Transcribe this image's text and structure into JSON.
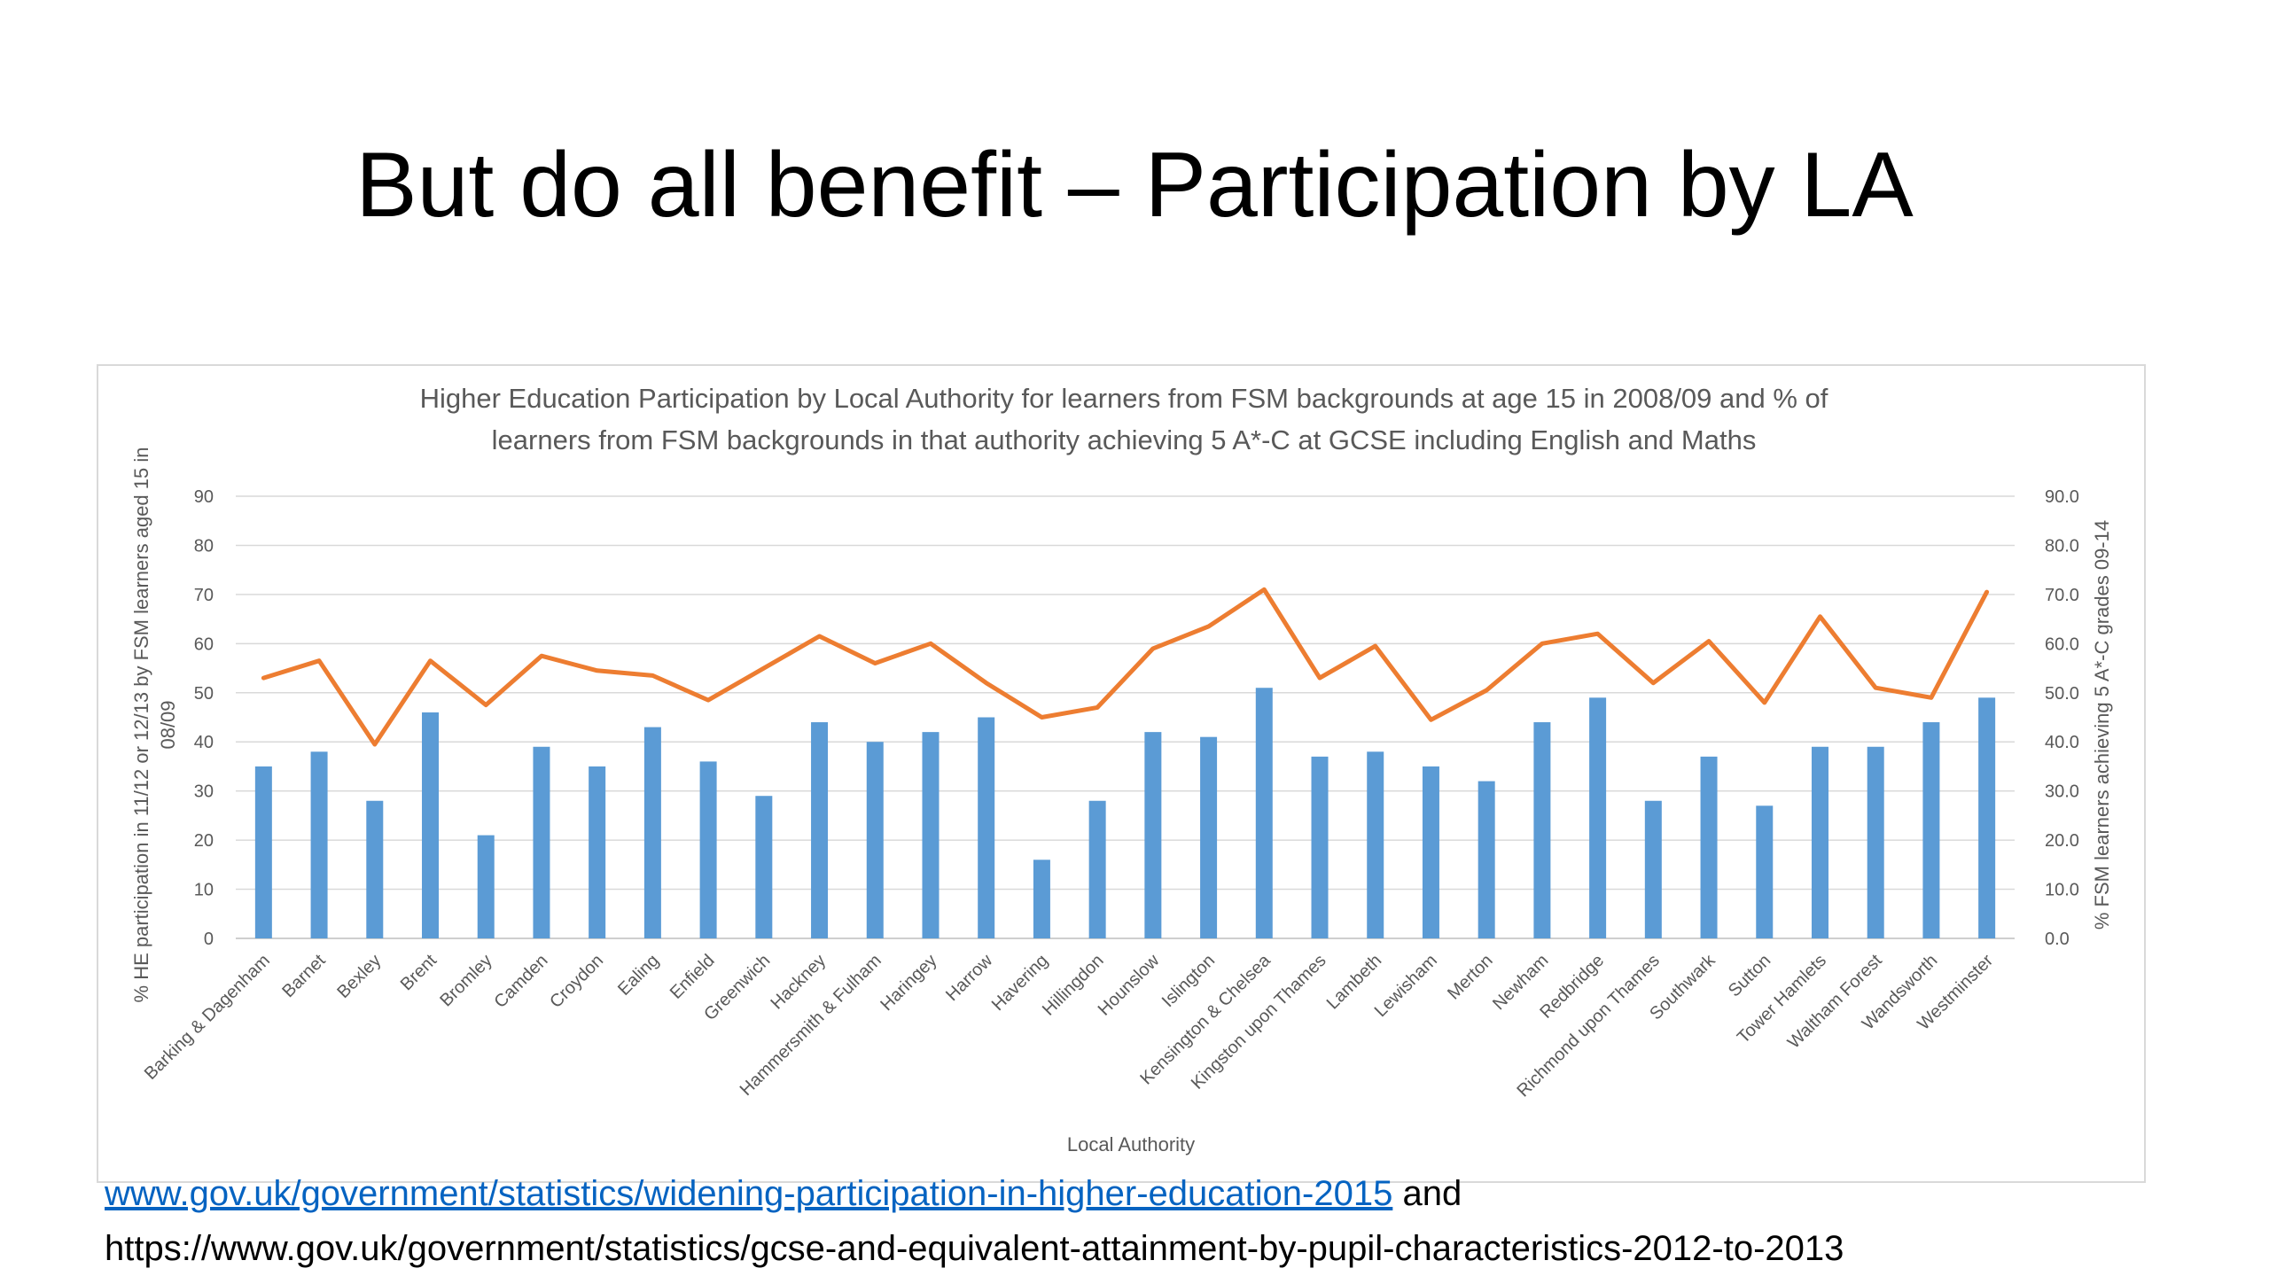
{
  "slide": {
    "title": "But do all benefit – Participation by LA"
  },
  "source": {
    "link_text": "www.gov.uk/government/statistics/widening-participation-in-higher-education-2015",
    "conjunction": " and",
    "second_url_text": "https://www.gov.uk/government/statistics/gcse-and-equivalent-attainment-by-pupil-characteristics-2012-to-2013"
  },
  "chart_data": {
    "type": "bar",
    "title_lines": [
      "Higher Education Participation by Local Authority for learners from FSM backgrounds at age 15 in 2008/09 and % of",
      "learners from FSM backgrounds in that authority achieving 5 A*-C at GCSE including English and Maths"
    ],
    "xlabel": "Local Authority",
    "ylabel_lines": [
      "% HE  participation in 11/12 or 12/13 by FSM learners aged 15 in",
      "08/09"
    ],
    "y2label": "% FSM learners achieving 5 A*-C grades  09-14",
    "ylim": [
      0,
      90
    ],
    "y2lim": [
      0,
      90
    ],
    "yticks": [
      "0",
      "10",
      "20",
      "30",
      "40",
      "50",
      "60",
      "70",
      "80",
      "90"
    ],
    "y2ticks": [
      "0.0",
      "10.0",
      "20.0",
      "30.0",
      "40.0",
      "50.0",
      "60.0",
      "70.0",
      "80.0",
      "90.0"
    ],
    "grid": true,
    "categories": [
      "Barking & Dagenham",
      "Barnet",
      "Bexley",
      "Brent",
      "Bromley",
      "Camden",
      "Croydon",
      "Ealing",
      "Enfield",
      "Greenwich",
      "Hackney",
      "Hammersmith & Fulham",
      "Haringey",
      "Harrow",
      "Havering",
      "Hillingdon",
      "Hounslow",
      "Islington",
      "Kensington & Chelsea",
      "Kingston upon Thames",
      "Lambeth",
      "Lewisham",
      "Merton",
      "Newham",
      "Redbridge",
      "Richmond upon Thames",
      "Southwark",
      "Sutton",
      "Tower Hamlets",
      "Waltham Forest",
      "Wandsworth",
      "Westminster"
    ],
    "series": [
      {
        "kind": "bar",
        "axis": "left",
        "color": "#5b9bd5",
        "values": [
          35,
          38,
          28,
          46,
          21,
          39,
          35,
          43,
          36,
          29,
          44,
          40,
          42,
          45,
          16,
          28,
          42,
          41,
          51,
          37,
          38,
          35,
          32,
          44,
          49,
          28,
          37,
          27,
          39,
          39,
          44,
          49
        ]
      },
      {
        "kind": "line",
        "axis": "right",
        "color": "#ed7d31",
        "values": [
          53,
          56.5,
          39.5,
          56.5,
          47.5,
          57.5,
          54.5,
          53.5,
          48.5,
          55,
          61.5,
          56,
          60,
          52,
          45,
          47,
          59,
          63.5,
          71,
          53,
          59.5,
          44.5,
          50.5,
          60,
          62,
          52,
          60.5,
          48,
          65.5,
          51,
          49,
          70.5
        ]
      }
    ]
  }
}
